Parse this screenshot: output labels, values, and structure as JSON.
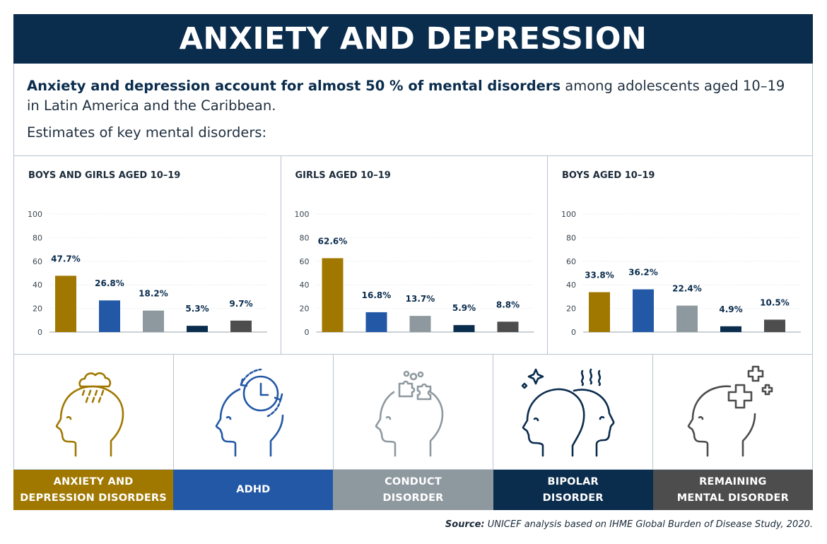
{
  "title": "ANXIETY AND DEPRESSION",
  "intro": {
    "bold_text": "Anxiety and depression account for almost 50 % of mental disorders",
    "rest_text": " among adolescents aged 10–19 in Latin America and the Caribbean.",
    "subheading": "Estimates of key mental disorders:"
  },
  "colors": {
    "title_bg": "#0a2c4d",
    "anxiety": "#a07800",
    "adhd": "#2358a6",
    "conduct": "#8e999f",
    "bipolar": "#0a2c4d",
    "remaining": "#4d4d4d"
  },
  "chart_data": [
    {
      "type": "bar",
      "title": "BOYS AND GIRLS AGED 10–19",
      "categories": [
        "Anxiety and depression disorders",
        "ADHD",
        "Conduct disorder",
        "Bipolar disorder",
        "Remaining mental disorder"
      ],
      "values": [
        47.7,
        26.8,
        18.2,
        5.3,
        9.7
      ],
      "value_labels": [
        "47.7%",
        "26.8%",
        "18.2%",
        "5.3%",
        "9.7%"
      ],
      "yticks": [
        0,
        20,
        40,
        60,
        80,
        100
      ],
      "ylim": [
        0,
        100
      ],
      "xlabel": "",
      "ylabel": ""
    },
    {
      "type": "bar",
      "title": "GIRLS AGED 10–19",
      "categories": [
        "Anxiety and depression disorders",
        "ADHD",
        "Conduct disorder",
        "Bipolar disorder",
        "Remaining mental disorder"
      ],
      "values": [
        62.6,
        16.8,
        13.7,
        5.9,
        8.8
      ],
      "value_labels": [
        "62.6%",
        "16.8%",
        "13.7%",
        "5.9%",
        "8.8%"
      ],
      "yticks": [
        0,
        20,
        40,
        60,
        80,
        100
      ],
      "ylim": [
        0,
        100
      ],
      "xlabel": "",
      "ylabel": ""
    },
    {
      "type": "bar",
      "title": "BOYS AGED 10–19",
      "categories": [
        "Anxiety and depression disorders",
        "ADHD",
        "Conduct disorder",
        "Bipolar disorder",
        "Remaining mental disorder"
      ],
      "values": [
        33.8,
        36.2,
        22.4,
        4.9,
        10.5
      ],
      "value_labels": [
        "33.8%",
        "36.2%",
        "22.4%",
        "4.9%",
        "10.5%"
      ],
      "yticks": [
        0,
        20,
        40,
        60,
        80,
        100
      ],
      "ylim": [
        0,
        100
      ],
      "xlabel": "",
      "ylabel": ""
    }
  ],
  "legend": [
    {
      "label_line1": "ANXIETY AND",
      "label_line2": "DEPRESSION DISORDERS",
      "icon": "head-rain-cloud-icon",
      "color_key": "anxiety"
    },
    {
      "label_line1": "ADHD",
      "label_line2": "",
      "icon": "head-clock-icon",
      "color_key": "adhd"
    },
    {
      "label_line1": "CONDUCT",
      "label_line2": "DISORDER",
      "icon": "head-puzzle-icon",
      "color_key": "conduct"
    },
    {
      "label_line1": "BIPOLAR",
      "label_line2": "DISORDER",
      "icon": "two-faces-icon",
      "color_key": "bipolar"
    },
    {
      "label_line1": "REMAINING",
      "label_line2": "MENTAL DISORDER",
      "icon": "head-medical-cross-icon",
      "color_key": "remaining"
    }
  ],
  "source": {
    "label": "Source:",
    "text": " UNICEF analysis based on IHME Global Burden of Disease Study, 2020."
  }
}
